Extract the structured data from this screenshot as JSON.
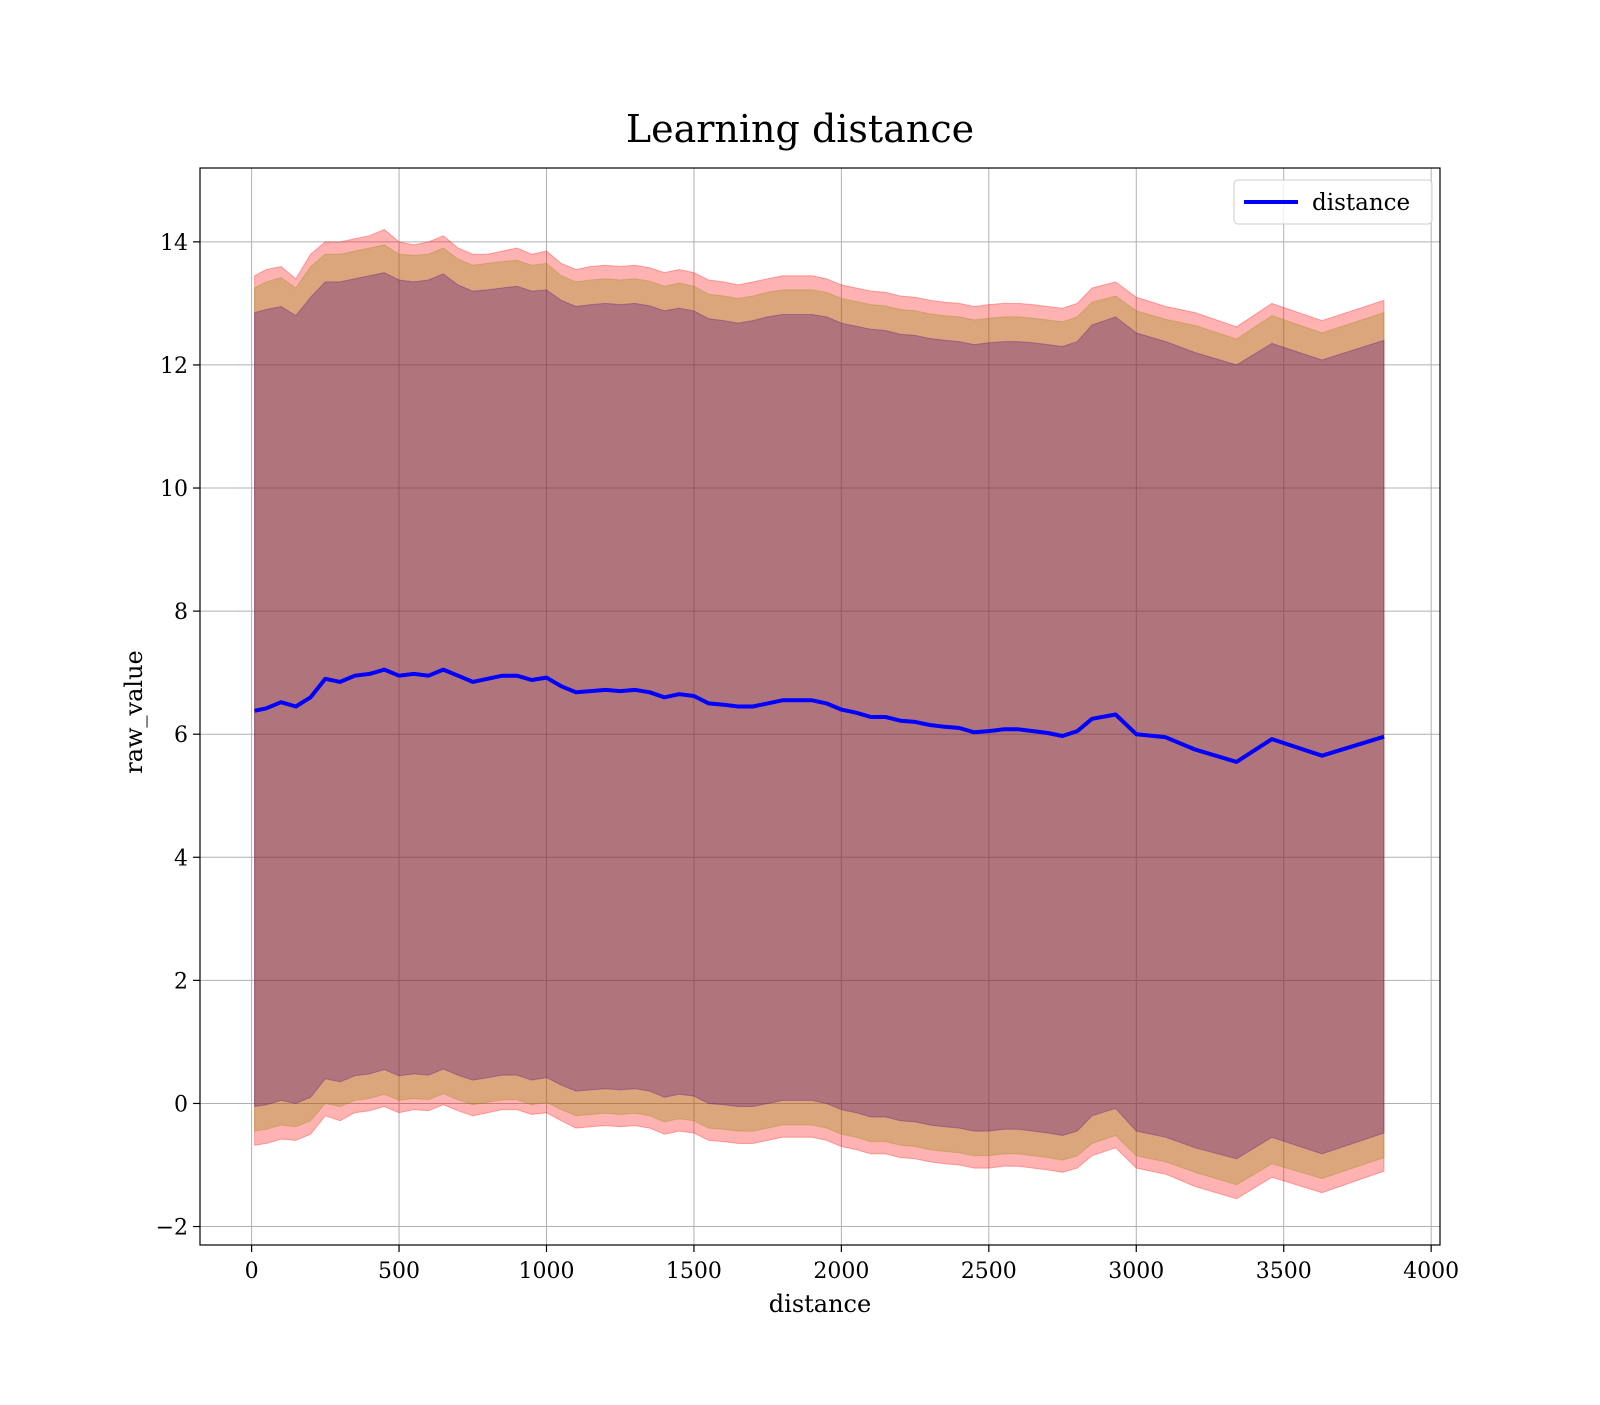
{
  "chart_data": {
    "type": "line",
    "title": "Learning distance",
    "xlabel": "distance",
    "ylabel": "raw_value",
    "xlim": [
      -175,
      4030
    ],
    "ylim": [
      -2.3,
      15.2
    ],
    "xticks": [
      0,
      500,
      1000,
      1500,
      2000,
      2500,
      3000,
      3500,
      4000
    ],
    "yticks": [
      -2,
      0,
      2,
      4,
      6,
      8,
      10,
      12,
      14
    ],
    "xtick_labels": [
      "0",
      "500",
      "1000",
      "1500",
      "2000",
      "2500",
      "3000",
      "3500",
      "4000"
    ],
    "ytick_labels": [
      "−2",
      "0",
      "2",
      "4",
      "6",
      "8",
      "10",
      "12",
      "14"
    ],
    "grid": true,
    "legend": {
      "position": "top-right",
      "entries": [
        "distance"
      ]
    },
    "colors": {
      "line": "#0000ff",
      "outer_band": "#ff0000",
      "middle_band": "#8b8b00",
      "inner_band": "#4b0082"
    },
    "x": [
      10,
      50,
      100,
      150,
      200,
      250,
      300,
      350,
      400,
      450,
      500,
      550,
      600,
      650,
      700,
      750,
      800,
      850,
      900,
      950,
      1000,
      1050,
      1100,
      1150,
      1200,
      1250,
      1300,
      1350,
      1400,
      1450,
      1500,
      1550,
      1600,
      1650,
      1700,
      1750,
      1800,
      1850,
      1900,
      1950,
      2000,
      2050,
      2100,
      2150,
      2200,
      2250,
      2300,
      2350,
      2400,
      2450,
      2500,
      2550,
      2600,
      2650,
      2700,
      2750,
      2800,
      2850,
      2930,
      3000,
      3100,
      3200,
      3340,
      3460,
      3630,
      3840
    ],
    "series": [
      {
        "name": "distance",
        "values": [
          6.38,
          6.42,
          6.52,
          6.45,
          6.6,
          6.9,
          6.85,
          6.95,
          6.98,
          7.05,
          6.95,
          6.98,
          6.95,
          7.05,
          6.95,
          6.85,
          6.9,
          6.95,
          6.95,
          6.88,
          6.92,
          6.78,
          6.68,
          6.7,
          6.72,
          6.7,
          6.72,
          6.68,
          6.6,
          6.65,
          6.62,
          6.5,
          6.48,
          6.45,
          6.45,
          6.5,
          6.55,
          6.55,
          6.55,
          6.5,
          6.4,
          6.35,
          6.28,
          6.28,
          6.22,
          6.2,
          6.15,
          6.12,
          6.1,
          6.03,
          6.05,
          6.08,
          6.08,
          6.05,
          6.02,
          5.97,
          6.05,
          6.25,
          6.32,
          6.0,
          5.95,
          5.75,
          5.55,
          5.92,
          5.65,
          5.96
        ]
      }
    ],
    "bands": [
      {
        "color": "#ff0000",
        "upper": [
          13.45,
          13.55,
          13.6,
          13.4,
          13.8,
          14.0,
          14.0,
          14.05,
          14.1,
          14.2,
          14.0,
          13.95,
          14.0,
          14.1,
          13.9,
          13.8,
          13.8,
          13.85,
          13.9,
          13.8,
          13.85,
          13.65,
          13.55,
          13.6,
          13.62,
          13.6,
          13.62,
          13.58,
          13.5,
          13.55,
          13.5,
          13.38,
          13.35,
          13.3,
          13.35,
          13.4,
          13.45,
          13.45,
          13.45,
          13.4,
          13.3,
          13.25,
          13.2,
          13.18,
          13.12,
          13.1,
          13.05,
          13.02,
          13.0,
          12.95,
          12.98,
          13.0,
          13.0,
          12.98,
          12.95,
          12.92,
          13.0,
          13.25,
          13.35,
          13.1,
          12.95,
          12.85,
          12.62,
          13.0,
          12.72,
          13.05
        ],
        "lower": [
          -0.68,
          -0.65,
          -0.58,
          -0.6,
          -0.5,
          -0.2,
          -0.28,
          -0.15,
          -0.12,
          -0.05,
          -0.15,
          -0.1,
          -0.12,
          -0.02,
          -0.12,
          -0.2,
          -0.15,
          -0.1,
          -0.1,
          -0.18,
          -0.15,
          -0.28,
          -0.4,
          -0.38,
          -0.36,
          -0.38,
          -0.36,
          -0.4,
          -0.5,
          -0.45,
          -0.48,
          -0.6,
          -0.62,
          -0.65,
          -0.65,
          -0.6,
          -0.55,
          -0.55,
          -0.55,
          -0.6,
          -0.7,
          -0.75,
          -0.82,
          -0.82,
          -0.88,
          -0.9,
          -0.95,
          -0.98,
          -1.0,
          -1.05,
          -1.05,
          -1.02,
          -1.02,
          -1.05,
          -1.08,
          -1.12,
          -1.05,
          -0.85,
          -0.72,
          -1.05,
          -1.15,
          -1.35,
          -1.55,
          -1.2,
          -1.45,
          -1.1
        ]
      },
      {
        "color": "#8b8b00",
        "upper": [
          13.25,
          13.35,
          13.42,
          13.25,
          13.6,
          13.8,
          13.8,
          13.85,
          13.9,
          13.95,
          13.8,
          13.78,
          13.8,
          13.9,
          13.72,
          13.62,
          13.65,
          13.68,
          13.7,
          13.62,
          13.65,
          13.45,
          13.35,
          13.38,
          13.4,
          13.38,
          13.4,
          13.36,
          13.28,
          13.33,
          13.28,
          13.15,
          13.12,
          13.08,
          13.12,
          13.18,
          13.22,
          13.22,
          13.22,
          13.18,
          13.08,
          13.03,
          12.98,
          12.96,
          12.9,
          12.88,
          12.83,
          12.8,
          12.78,
          12.73,
          12.76,
          12.78,
          12.78,
          12.76,
          12.73,
          12.7,
          12.78,
          13.02,
          13.12,
          12.88,
          12.74,
          12.64,
          12.42,
          12.8,
          12.52,
          12.85
        ],
        "lower": [
          -0.45,
          -0.42,
          -0.35,
          -0.38,
          -0.28,
          0.0,
          -0.05,
          0.05,
          0.08,
          0.15,
          0.05,
          0.08,
          0.06,
          0.16,
          0.06,
          -0.02,
          0.02,
          0.06,
          0.06,
          -0.02,
          0.02,
          -0.1,
          -0.2,
          -0.18,
          -0.16,
          -0.18,
          -0.16,
          -0.2,
          -0.3,
          -0.25,
          -0.28,
          -0.4,
          -0.42,
          -0.45,
          -0.45,
          -0.4,
          -0.35,
          -0.35,
          -0.35,
          -0.4,
          -0.5,
          -0.55,
          -0.62,
          -0.62,
          -0.68,
          -0.7,
          -0.75,
          -0.78,
          -0.8,
          -0.85,
          -0.85,
          -0.82,
          -0.82,
          -0.85,
          -0.88,
          -0.92,
          -0.85,
          -0.65,
          -0.52,
          -0.85,
          -0.95,
          -1.12,
          -1.32,
          -0.98,
          -1.22,
          -0.88
        ]
      },
      {
        "color": "#4b0082",
        "upper": [
          12.85,
          12.9,
          12.95,
          12.8,
          13.1,
          13.35,
          13.35,
          13.4,
          13.45,
          13.5,
          13.38,
          13.35,
          13.38,
          13.48,
          13.3,
          13.2,
          13.22,
          13.25,
          13.28,
          13.2,
          13.22,
          13.05,
          12.95,
          12.98,
          13.0,
          12.98,
          13.0,
          12.96,
          12.88,
          12.92,
          12.88,
          12.75,
          12.72,
          12.68,
          12.72,
          12.78,
          12.82,
          12.82,
          12.82,
          12.78,
          12.68,
          12.63,
          12.58,
          12.56,
          12.5,
          12.48,
          12.43,
          12.4,
          12.38,
          12.33,
          12.36,
          12.38,
          12.38,
          12.36,
          12.33,
          12.3,
          12.38,
          12.65,
          12.78,
          12.52,
          12.38,
          12.2,
          12.0,
          12.35,
          12.08,
          12.4
        ],
        "lower": [
          -0.05,
          -0.02,
          0.05,
          0.0,
          0.1,
          0.4,
          0.35,
          0.45,
          0.48,
          0.55,
          0.45,
          0.48,
          0.46,
          0.56,
          0.46,
          0.38,
          0.42,
          0.46,
          0.46,
          0.38,
          0.42,
          0.3,
          0.2,
          0.22,
          0.24,
          0.22,
          0.24,
          0.2,
          0.1,
          0.15,
          0.12,
          0.0,
          -0.02,
          -0.05,
          -0.05,
          0.0,
          0.05,
          0.05,
          0.05,
          0.0,
          -0.1,
          -0.15,
          -0.22,
          -0.22,
          -0.28,
          -0.3,
          -0.35,
          -0.38,
          -0.4,
          -0.45,
          -0.45,
          -0.42,
          -0.42,
          -0.45,
          -0.48,
          -0.52,
          -0.45,
          -0.2,
          -0.08,
          -0.45,
          -0.55,
          -0.72,
          -0.9,
          -0.55,
          -0.82,
          -0.48
        ]
      }
    ]
  }
}
